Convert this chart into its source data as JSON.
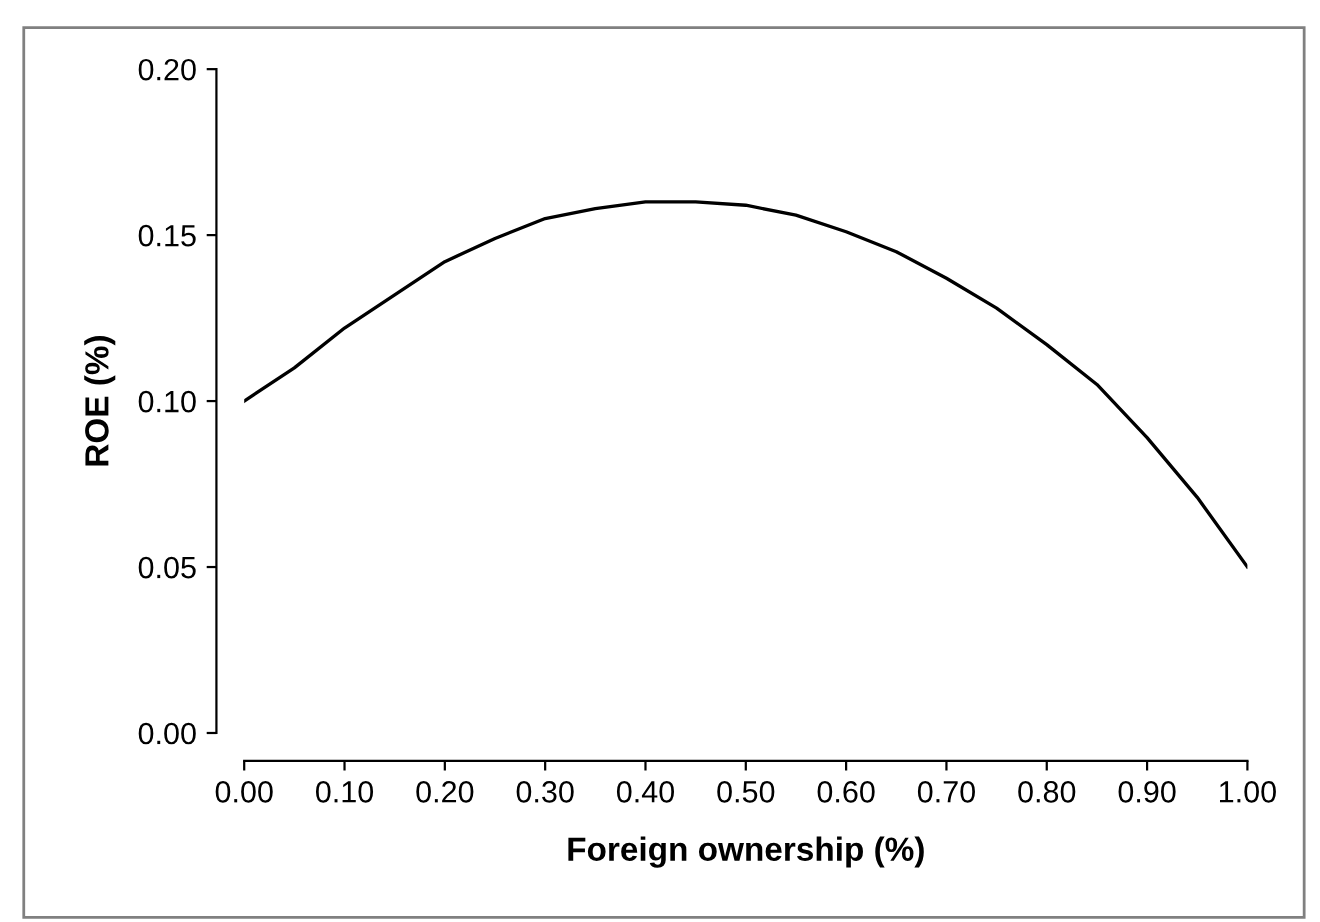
{
  "chart_data": {
    "type": "line",
    "xlabel": "Foreign ownership (%)",
    "ylabel": "ROE (%)",
    "x": [
      0,
      0.05,
      0.1,
      0.15,
      0.2,
      0.25,
      0.3,
      0.35,
      0.4,
      0.45,
      0.5,
      0.55,
      0.6,
      0.65,
      0.7,
      0.75,
      0.8,
      0.85,
      0.9,
      0.95,
      1.0
    ],
    "series": [
      {
        "color": "#000000",
        "values": [
          0.1,
          0.11,
          0.122,
          0.132,
          0.142,
          0.149,
          0.155,
          0.158,
          0.16,
          0.16,
          0.159,
          0.156,
          0.151,
          0.145,
          0.137,
          0.128,
          0.117,
          0.105,
          0.089,
          0.071,
          0.05
        ]
      }
    ],
    "xlim": [
      0,
      1
    ],
    "ylim": [
      0,
      0.2
    ],
    "xticks": [
      {
        "value": 0,
        "label": "0.00"
      },
      {
        "value": 0.1,
        "label": "0.10"
      },
      {
        "value": 0.2,
        "label": "0.20"
      },
      {
        "value": 0.3,
        "label": "0.30"
      },
      {
        "value": 0.4,
        "label": "0.40"
      },
      {
        "value": 0.5,
        "label": "0.50"
      },
      {
        "value": 0.6,
        "label": "0.60"
      },
      {
        "value": 0.7,
        "label": "0.70"
      },
      {
        "value": 0.8,
        "label": "0.80"
      },
      {
        "value": 0.9,
        "label": "0.90"
      },
      {
        "value": 1.0,
        "label": "1.00"
      }
    ],
    "yticks": [
      {
        "value": 0,
        "label": "0.00"
      },
      {
        "value": 0.05,
        "label": "0.05"
      },
      {
        "value": 0.1,
        "label": "0.10"
      },
      {
        "value": 0.15,
        "label": "0.15"
      },
      {
        "value": 0.2,
        "label": "0.20"
      }
    ],
    "grid": false,
    "line_style": "solid",
    "marker": "none"
  }
}
